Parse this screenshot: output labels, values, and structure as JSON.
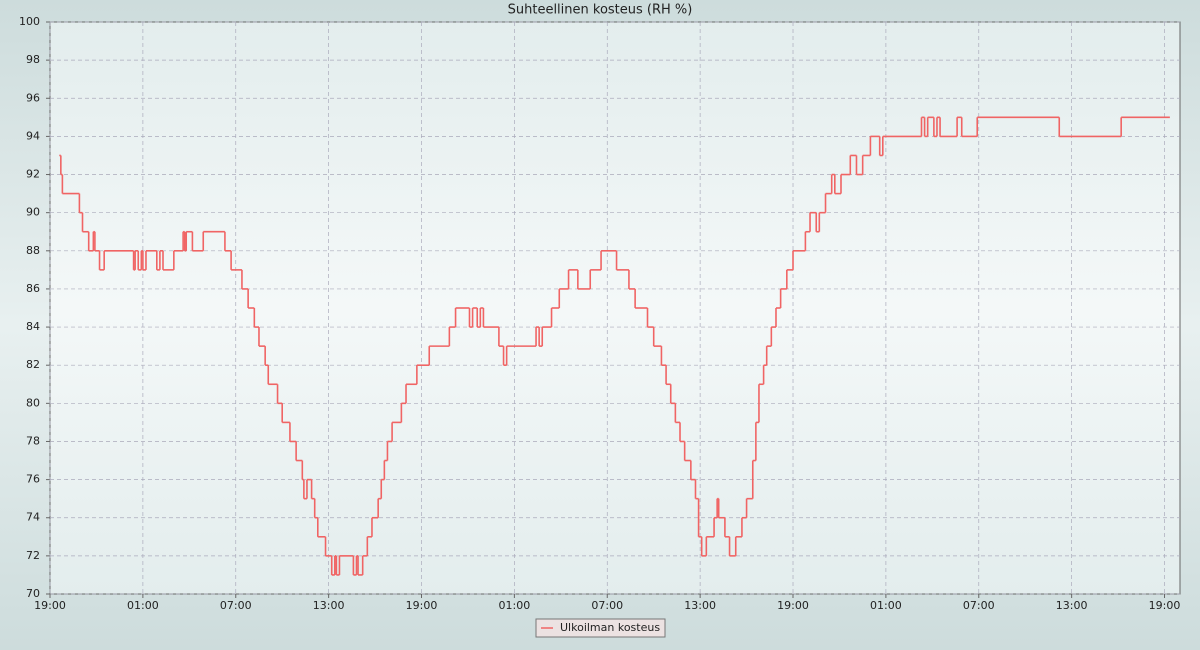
{
  "chart_data": {
    "type": "step-line",
    "title": "Suhteellinen kosteus (RH %)",
    "xlim": [
      0,
      73
    ],
    "ylim": [
      70,
      100
    ],
    "xticks": [
      {
        "value": 0,
        "label": "19:00"
      },
      {
        "value": 6,
        "label": "01:00"
      },
      {
        "value": 12,
        "label": "07:00"
      },
      {
        "value": 18,
        "label": "13:00"
      },
      {
        "value": 24,
        "label": "19:00"
      },
      {
        "value": 30,
        "label": "01:00"
      },
      {
        "value": 36,
        "label": "07:00"
      },
      {
        "value": 42,
        "label": "13:00"
      },
      {
        "value": 48,
        "label": "19:00"
      },
      {
        "value": 54,
        "label": "01:00"
      },
      {
        "value": 60,
        "label": "07:00"
      },
      {
        "value": 66,
        "label": "13:00"
      },
      {
        "value": 72,
        "label": "19:00"
      }
    ],
    "yticks": [
      70,
      72,
      74,
      76,
      78,
      80,
      82,
      84,
      86,
      88,
      90,
      92,
      94,
      96,
      98,
      100
    ],
    "grid": true,
    "series": [
      {
        "name": "Ulkoilman kosteus",
        "color": "#f06464",
        "x": [
          0.6,
          0.7,
          0.8,
          1.9,
          2.1,
          2.5,
          2.8,
          2.9,
          3.2,
          3.5,
          5.4,
          5.5,
          5.7,
          5.9,
          6.0,
          6.2,
          6.9,
          7.1,
          7.3,
          8.0,
          8.6,
          8.7,
          8.8,
          9.2,
          9.9,
          11.3,
          11.7,
          12.4,
          12.8,
          13.2,
          13.5,
          13.9,
          14.1,
          14.7,
          15.0,
          15.5,
          15.9,
          16.3,
          16.4,
          16.6,
          16.9,
          17.1,
          17.3,
          17.8,
          18.2,
          18.4,
          18.5,
          18.7,
          19.6,
          19.8,
          19.9,
          20.2,
          20.5,
          20.8,
          21.2,
          21.4,
          21.6,
          21.8,
          22.1,
          22.7,
          23.0,
          23.7,
          24.5,
          25.8,
          26.2,
          27.1,
          27.3,
          27.6,
          27.8,
          28.0,
          29.0,
          29.3,
          29.5,
          31.4,
          31.6,
          31.8,
          32.4,
          32.9,
          33.5,
          34.1,
          34.9,
          35.6,
          36.6,
          37.4,
          37.8,
          38.6,
          39.0,
          39.5,
          39.8,
          40.1,
          40.4,
          40.7,
          41.0,
          41.4,
          41.7,
          41.9,
          42.1,
          42.4,
          42.9,
          43.1,
          43.2,
          43.6,
          43.9,
          44.3,
          44.7,
          45.0,
          45.4,
          45.6,
          45.8,
          46.1,
          46.3,
          46.6,
          46.9,
          47.2,
          47.6,
          48.0,
          48.8,
          49.1,
          49.5,
          49.7,
          50.1,
          50.5,
          50.7,
          51.1,
          51.7,
          52.1,
          52.5,
          53.0,
          53.6,
          53.8,
          56.3,
          56.5,
          56.7,
          57.1,
          57.3,
          57.5,
          58.6,
          58.9,
          59.9,
          65.2,
          69.2,
          72.3
        ],
        "values": [
          93,
          92,
          91,
          90,
          89,
          88,
          89,
          88,
          87,
          88,
          87,
          88,
          87,
          88,
          87,
          88,
          87,
          88,
          87,
          88,
          89,
          88,
          89,
          88,
          89,
          88,
          87,
          86,
          85,
          84,
          83,
          82,
          81,
          80,
          79,
          78,
          77,
          76,
          75,
          76,
          75,
          74,
          73,
          72,
          71,
          72,
          71,
          72,
          71,
          72,
          71,
          72,
          73,
          74,
          75,
          76,
          77,
          78,
          79,
          80,
          81,
          82,
          83,
          84,
          85,
          84,
          85,
          84,
          85,
          84,
          83,
          82,
          83,
          84,
          83,
          84,
          85,
          86,
          87,
          86,
          87,
          88,
          87,
          86,
          85,
          84,
          83,
          82,
          81,
          80,
          79,
          78,
          77,
          76,
          75,
          73,
          72,
          73,
          74,
          75,
          74,
          73,
          72,
          73,
          74,
          75,
          77,
          79,
          81,
          82,
          83,
          84,
          85,
          86,
          87,
          88,
          89,
          90,
          89,
          90,
          91,
          92,
          91,
          92,
          93,
          92,
          93,
          94,
          93,
          94,
          95,
          94,
          95,
          94,
          95,
          94,
          95,
          94,
          95,
          94,
          95,
          95
        ]
      }
    ]
  }
}
